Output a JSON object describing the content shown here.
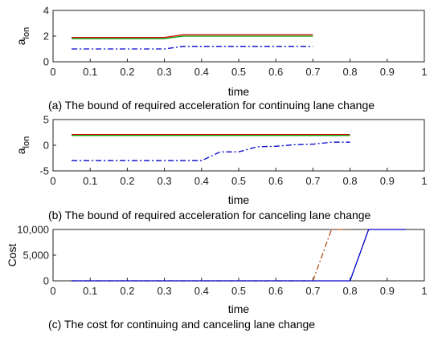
{
  "chart_data": [
    {
      "type": "line",
      "caption": "(a) The bound of required acceleration for continuing lane change",
      "xlabel": "time",
      "ylabel": "a",
      "ylabel_sub": "lon",
      "xlim": [
        0,
        1
      ],
      "ylim": [
        0,
        4
      ],
      "xticks": [
        "0",
        "0.1",
        "0.2",
        "0.3",
        "0.4",
        "0.5",
        "0.6",
        "0.7",
        "0.8",
        "0.9",
        "1"
      ],
      "yticks": [
        "0",
        "2",
        "4"
      ],
      "grid": false,
      "series": [
        {
          "color": "#d40000",
          "style": "solid",
          "x": [
            0.05,
            0.3,
            0.35,
            0.7
          ],
          "y": [
            1.9,
            1.9,
            2.1,
            2.1
          ]
        },
        {
          "color": "#00a000",
          "style": "solid",
          "x": [
            0.05,
            0.3,
            0.35,
            0.7
          ],
          "y": [
            1.8,
            1.8,
            2.0,
            2.0
          ]
        },
        {
          "color": "#0000cc",
          "style": "dashdot",
          "x": [
            0.05,
            0.3,
            0.35,
            0.7
          ],
          "y": [
            1.0,
            1.0,
            1.2,
            1.2
          ]
        }
      ]
    },
    {
      "type": "line",
      "caption": "(b) The bound of required acceleration for canceling lane change",
      "xlabel": "time",
      "ylabel": "a",
      "ylabel_sub": "lon",
      "xlim": [
        0,
        1
      ],
      "ylim": [
        -5,
        5
      ],
      "xticks": [
        "0",
        "0.1",
        "0.2",
        "0.3",
        "0.4",
        "0.5",
        "0.6",
        "0.7",
        "0.8",
        "0.9",
        "1"
      ],
      "yticks": [
        "-5",
        "0",
        "5"
      ],
      "grid": false,
      "series": [
        {
          "color": "#d40000",
          "style": "solid",
          "x": [
            0.05,
            0.8
          ],
          "y": [
            2.1,
            2.1
          ]
        },
        {
          "color": "#00a000",
          "style": "solid",
          "x": [
            0.05,
            0.8
          ],
          "y": [
            1.9,
            1.9
          ]
        },
        {
          "color": "#0000cc",
          "style": "dashdot",
          "x": [
            0.05,
            0.4,
            0.45,
            0.5,
            0.55,
            0.6,
            0.65,
            0.7,
            0.75,
            0.8
          ],
          "y": [
            -3.0,
            -3.0,
            -1.3,
            -1.3,
            -0.3,
            -0.2,
            0.1,
            0.2,
            0.6,
            0.6
          ]
        }
      ]
    },
    {
      "type": "line",
      "caption": "(c) The cost for continuing and canceling lane change",
      "xlabel": "time",
      "ylabel": "Cost",
      "xlim": [
        0,
        1
      ],
      "ylim": [
        0,
        10000
      ],
      "xticks": [
        "0",
        "0.1",
        "0.2",
        "0.3",
        "0.4",
        "0.5",
        "0.6",
        "0.7",
        "0.8",
        "0.9",
        "1"
      ],
      "yticks": [
        "0",
        "5,000",
        "10,000"
      ],
      "grid": false,
      "series": [
        {
          "color": "#b05010",
          "style": "dashdot",
          "x": [
            0.05,
            0.7,
            0.75,
            0.8
          ],
          "y": [
            0,
            0,
            10000,
            10000
          ]
        },
        {
          "color": "#0000cc",
          "style": "solid",
          "x": [
            0.05,
            0.8,
            0.85,
            0.95
          ],
          "y": [
            0,
            0,
            10000,
            10000
          ]
        }
      ]
    }
  ]
}
